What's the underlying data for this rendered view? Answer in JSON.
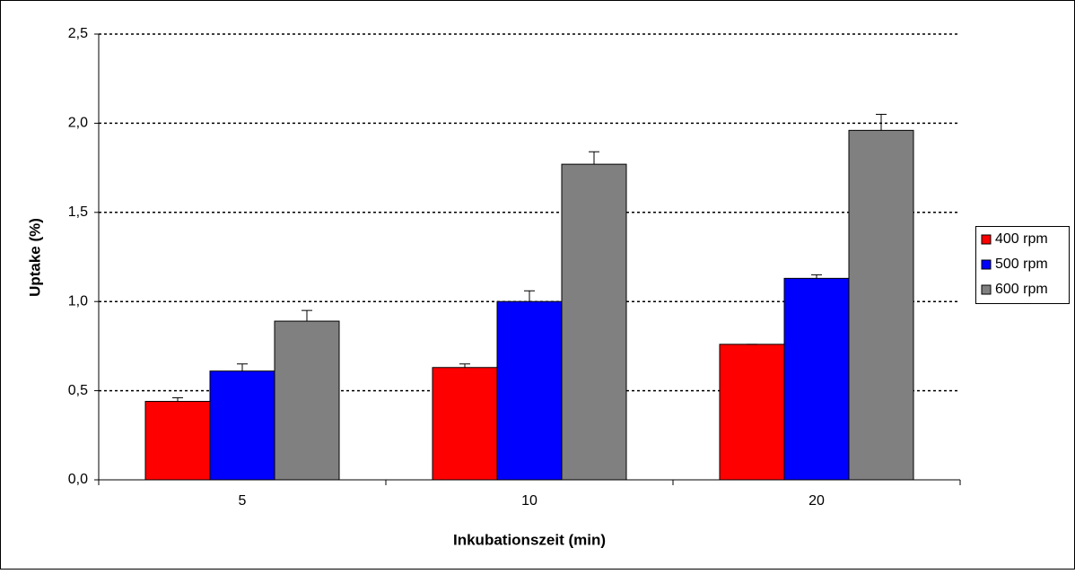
{
  "chart_data": {
    "type": "bar",
    "x_label": "Inkubationszeit (min)",
    "y_label": "Uptake (%)",
    "categories": [
      "5",
      "10",
      "20"
    ],
    "series": [
      {
        "name": "400 rpm",
        "color": "#ff0000",
        "values": [
          0.44,
          0.63,
          0.76
        ],
        "errors": [
          0.02,
          0.02,
          0.0
        ]
      },
      {
        "name": "500 rpm",
        "color": "#0000ff",
        "values": [
          0.61,
          1.0,
          1.13
        ],
        "errors": [
          0.04,
          0.06,
          0.02
        ]
      },
      {
        "name": "600 rpm",
        "color": "#808080",
        "values": [
          0.89,
          1.77,
          1.96
        ],
        "errors": [
          0.06,
          0.07,
          0.09
        ]
      }
    ],
    "ylim": [
      0,
      2.5
    ],
    "yticks": [
      {
        "value": 0,
        "label": "0,0"
      },
      {
        "value": 0.5,
        "label": "0,5"
      },
      {
        "value": 1,
        "label": "1,0"
      },
      {
        "value": 1.5,
        "label": "1,5"
      },
      {
        "value": 2,
        "label": "2,0"
      },
      {
        "value": 2.5,
        "label": "2,5"
      }
    ],
    "grid": true,
    "legend": "right"
  }
}
